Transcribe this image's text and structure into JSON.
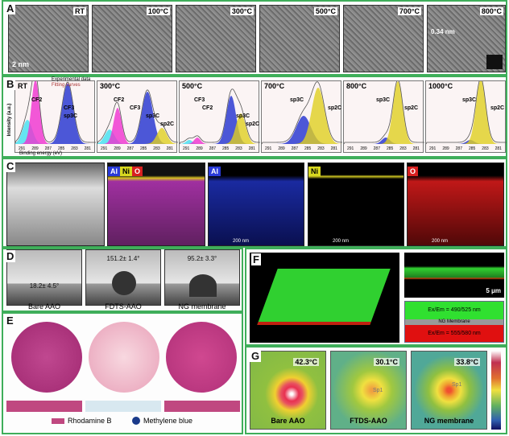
{
  "panels": {
    "a": "A",
    "b": "B",
    "c": "C",
    "d": "D",
    "e": "E",
    "f": "F",
    "g": "G"
  },
  "tem": {
    "labels": [
      "RT",
      "100°C",
      "300°C",
      "500°C",
      "700°C",
      "800°C"
    ],
    "scale": "2 nm",
    "spacing": "0.34 nm"
  },
  "xps": {
    "legend": [
      "Experimental data",
      "Fitting curves"
    ],
    "ylabel": "Intensity (a.u.)",
    "xlabel": "Binding energy (eV)",
    "xticks": [
      "291",
      "289",
      "287",
      "285",
      "283",
      "281"
    ],
    "plots": [
      {
        "temp": "RT",
        "labels": [
          "CF2",
          "CF3",
          "sp3C"
        ]
      },
      {
        "temp": "300°C",
        "labels": [
          "CF2",
          "CF3",
          "sp3C",
          "sp2C"
        ]
      },
      {
        "temp": "500°C",
        "labels": [
          "CF3",
          "CF2",
          "sp3C",
          "sp2C"
        ]
      },
      {
        "temp": "700°C",
        "labels": [
          "sp3C",
          "sp2C"
        ]
      },
      {
        "temp": "800°C",
        "labels": [
          "sp3C",
          "sp2C"
        ]
      },
      {
        "temp": "1000°C",
        "labels": [
          "sp3C",
          "sp2C"
        ]
      }
    ]
  },
  "eds": {
    "labels": [
      "Al",
      "Ni",
      "O"
    ],
    "scale": "200 nm",
    "colors": {
      "Al": "#2a3ad8",
      "Ni": "#d8d820",
      "O": "#d82020"
    }
  },
  "contact": {
    "angles": [
      "18.2± 4.5°",
      "151.2± 1.4°",
      "95.2± 3.3°"
    ],
    "samples": [
      "Bare AAO",
      "FDTS-AAO",
      "NG membrane"
    ]
  },
  "dye": {
    "legend": [
      "Rhodamine B",
      "Methylene blue"
    ]
  },
  "confocal": {
    "scale": "5 μm",
    "top": "Ex/Em = 490/525 nm",
    "middle": "NG Membrane",
    "bottom": "Ex/Em = 555/580 nm"
  },
  "thermal": {
    "temps": [
      "42.3°C",
      "30.1°C",
      "33.8°C"
    ],
    "samples": [
      "Bare AAO",
      "FTDS-AAO",
      "NG membrane"
    ],
    "spot": "Sp1"
  }
}
